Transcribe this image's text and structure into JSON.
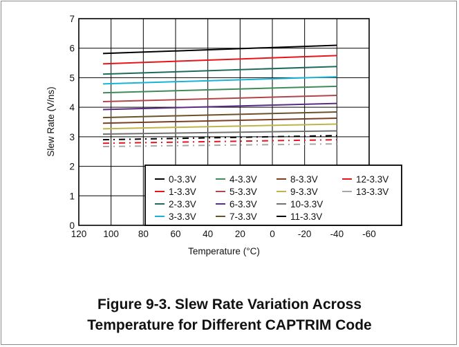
{
  "caption": {
    "line1": "Figure 9-3. Slew Rate Variation Across",
    "line2": "Temperature for Different CAPTRIM Code"
  },
  "chart_data": {
    "type": "line",
    "title": "",
    "xlabel": "Temperature (°C)",
    "ylabel": "Slew Rate (V/ns)",
    "xlim": [
      120,
      -60
    ],
    "ylim": [
      0,
      7
    ],
    "xticks": [
      120,
      100,
      80,
      60,
      40,
      20,
      0,
      -20,
      -40,
      -60
    ],
    "yticks": [
      0,
      1,
      2,
      3,
      4,
      5,
      6,
      7
    ],
    "grid": true,
    "legend_position": "bottom-right",
    "x": [
      105,
      -40
    ],
    "series": [
      {
        "name": "0-3.3V",
        "values": [
          5.82,
          6.1
        ],
        "color": "#000000",
        "dash": false
      },
      {
        "name": "1-3.3V",
        "values": [
          5.47,
          5.75
        ],
        "color": "#e8141c",
        "dash": false
      },
      {
        "name": "2-3.3V",
        "values": [
          5.12,
          5.38
        ],
        "color": "#1e6b5c",
        "dash": false
      },
      {
        "name": "3-3.3V",
        "values": [
          4.79,
          5.03
        ],
        "color": "#17b3d6",
        "dash": false
      },
      {
        "name": "4-3.3V",
        "values": [
          4.49,
          4.71
        ],
        "color": "#3d8a5a",
        "dash": false
      },
      {
        "name": "5-3.3V",
        "values": [
          4.19,
          4.4
        ],
        "color": "#b0454a",
        "dash": false
      },
      {
        "name": "6-3.3V",
        "values": [
          3.92,
          4.13
        ],
        "color": "#5b2a82",
        "dash": false
      },
      {
        "name": "7-3.3V",
        "values": [
          3.65,
          3.84
        ],
        "color": "#6b5226",
        "dash": false
      },
      {
        "name": "8-3.3V",
        "values": [
          3.46,
          3.63
        ],
        "color": "#7a3f22",
        "dash": false
      },
      {
        "name": "9-3.3V",
        "values": [
          3.27,
          3.43
        ],
        "color": "#c2b24a",
        "dash": false
      },
      {
        "name": "10-3.3V",
        "values": [
          3.09,
          3.2
        ],
        "color": "#707070",
        "dash": false
      },
      {
        "name": "11-3.3V",
        "values": [
          2.9,
          3.04
        ],
        "color": "#000000",
        "dash": true
      },
      {
        "name": "12-3.3V",
        "values": [
          2.78,
          2.9
        ],
        "color": "#e8141c",
        "dash": true
      },
      {
        "name": "13-3.3V",
        "values": [
          2.67,
          2.76
        ],
        "color": "#a6a6a6",
        "dash": true
      }
    ]
  }
}
